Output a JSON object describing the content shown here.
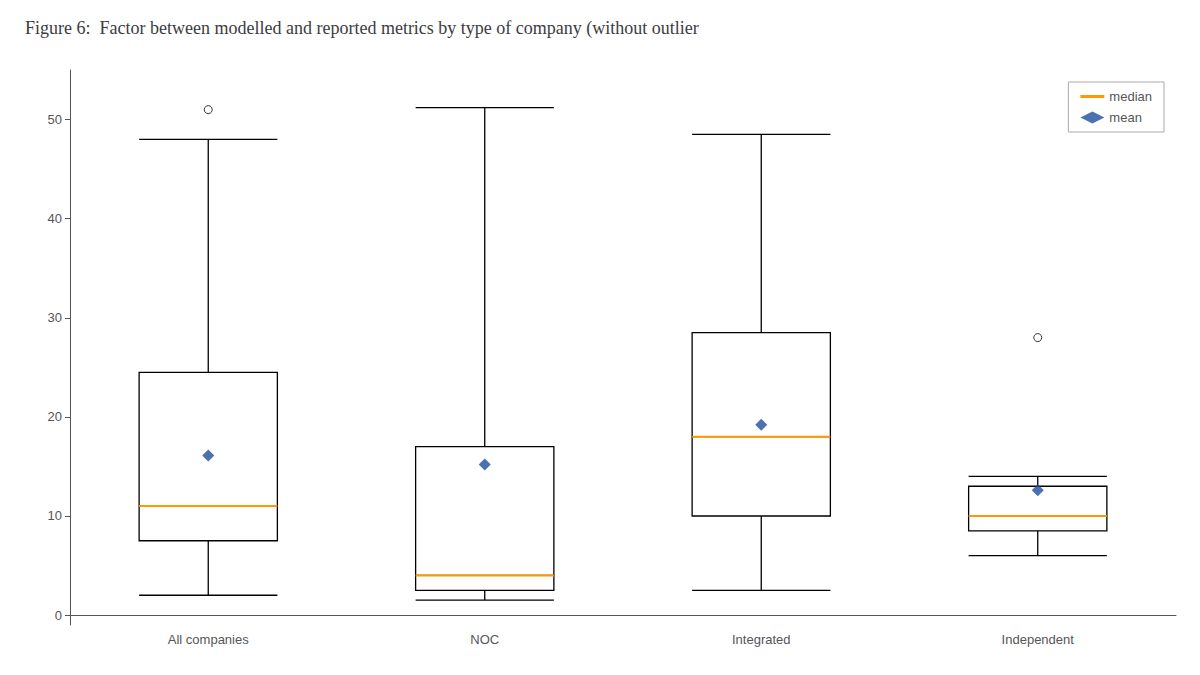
{
  "chart_data": {
    "type": "boxplot",
    "title": "Figure 6:  Factor between modelled and reported metrics by type of company (without outlier",
    "categories": [
      "All companies",
      "NOC",
      "Integrated",
      "Independent"
    ],
    "whislo": [
      2.0,
      1.5,
      2.5,
      6.0
    ],
    "q1": [
      7.5,
      2.5,
      10.0,
      8.5
    ],
    "q3": [
      24.5,
      17.0,
      28.5,
      13.0
    ],
    "whishi": [
      48.0,
      51.2,
      48.5,
      14.0
    ],
    "fliers": [
      [
        51.0
      ],
      [],
      [],
      [
        28.0
      ]
    ],
    "color": "#000000",
    "series": [
      {
        "name": "median",
        "color": "#ff9900",
        "marker": "line",
        "values": [
          11.0,
          4.0,
          18.0,
          10.0
        ]
      },
      {
        "name": "mean",
        "color": "#1f4e9c",
        "marker": "diamond",
        "values": [
          16.1,
          15.2,
          19.2,
          12.6
        ]
      }
    ],
    "ylim": [
      -1,
      55
    ],
    "yticks": [
      0,
      10,
      20,
      30,
      40,
      50
    ],
    "grid": false,
    "legend": "upper right"
  }
}
